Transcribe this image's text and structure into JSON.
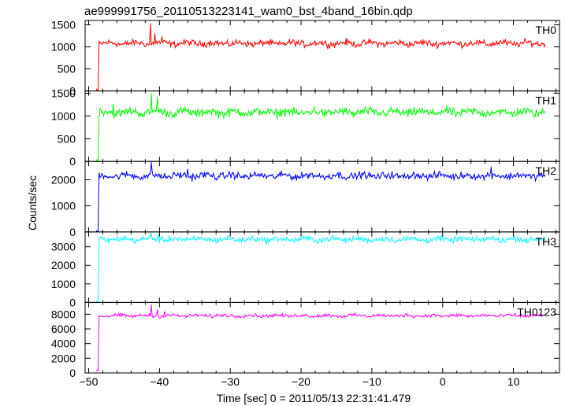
{
  "chart_data": {
    "type": "line",
    "title": "ae999991756_20110513223141_wam0_bst_4band_16bin.qdp",
    "xlabel": "Time [sec] 0 = 2011/05/13 22:31:41.479",
    "ylabel": "Counts/sec",
    "xlim": [
      -50.5,
      16.5
    ],
    "x_ticks": [
      -50,
      -40,
      -30,
      -20,
      -10,
      0,
      10
    ],
    "x_tick_labels": [
      "−50",
      "−40",
      "−30",
      "−20",
      "−10",
      "0",
      "10"
    ],
    "panels": [
      {
        "name": "TH0",
        "color": "#ff0000",
        "ylim": [
          0,
          1600
        ],
        "y_ticks": [
          0,
          500,
          1000,
          1500
        ],
        "baseline": 25,
        "level": 1080,
        "noise": 55,
        "spikes": [
          [
            -41.3,
            1530
          ],
          [
            -40.6,
            1300
          ],
          [
            -39.7,
            1230
          ]
        ]
      },
      {
        "name": "TH1",
        "color": "#00ff00",
        "ylim": [
          0,
          1550
        ],
        "y_ticks": [
          0,
          500,
          1000,
          1500
        ],
        "baseline": 25,
        "level": 1080,
        "noise": 70,
        "spikes": [
          [
            -41.2,
            1480
          ],
          [
            -40.3,
            1420
          ],
          [
            -46.5,
            1270
          ]
        ]
      },
      {
        "name": "TH2",
        "color": "#0000ff",
        "ylim": [
          0,
          2700
        ],
        "y_ticks": [
          0,
          1000,
          2000
        ],
        "baseline": 30,
        "level": 2150,
        "noise": 100,
        "spikes": [
          [
            -41.2,
            2680
          ],
          [
            -36.0,
            2420
          ],
          [
            6.9,
            2470
          ]
        ]
      },
      {
        "name": "TH3",
        "color": "#00ffff",
        "ylim": [
          0,
          3800
        ],
        "y_ticks": [
          0,
          1000,
          2000,
          3000
        ],
        "baseline": 40,
        "level": 3400,
        "noise": 120,
        "spikes": [
          [
            -41.2,
            3750
          ],
          [
            -40.2,
            3650
          ]
        ]
      },
      {
        "name": "TH0123",
        "color": "#ff00ff",
        "ylim": [
          0,
          9600
        ],
        "y_ticks": [
          0,
          2000,
          4000,
          6000,
          8000
        ],
        "baseline": 300,
        "level": 7800,
        "noise": 180,
        "spikes": [
          [
            -41.2,
            9300
          ],
          [
            -40.3,
            8600
          ],
          [
            -39.3,
            8400
          ]
        ]
      }
    ],
    "onset_time": -48.6,
    "grid": false
  }
}
